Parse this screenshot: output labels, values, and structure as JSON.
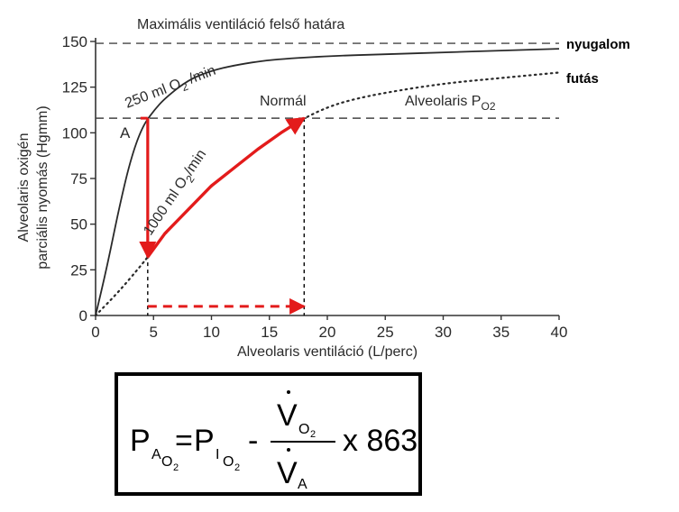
{
  "chart_data": {
    "type": "line",
    "title": "Maximális ventiláció felső határa",
    "xlabel": "Alveolaris ventiláció (L/perc)",
    "ylabel": [
      "Alveolaris oxigén",
      "parciális nyomás (Hgmm)"
    ],
    "xlim": [
      0,
      40
    ],
    "ylim": [
      0,
      150
    ],
    "xticks": [
      0,
      5,
      10,
      15,
      20,
      25,
      30,
      35,
      40
    ],
    "yticks": [
      0,
      25,
      50,
      75,
      100,
      125,
      150
    ],
    "reference_lines": [
      {
        "name": "upper_limit",
        "y": 149
      },
      {
        "name": "alveolar_po2",
        "y": 108
      }
    ],
    "series": [
      {
        "name": "nyugalom",
        "style": "solid",
        "label": "250 ml O",
        "label_sub": "2",
        "label_unit": " /min",
        "x": [
          0,
          1,
          2,
          3,
          4,
          5,
          6,
          8,
          10,
          12,
          15,
          20,
          25,
          30,
          35,
          40
        ],
        "y": [
          0,
          27,
          58,
          85,
          103,
          112,
          119,
          129,
          134,
          137,
          140,
          142,
          143,
          144,
          145,
          146
        ]
      },
      {
        "name": "futás",
        "style": "dotted",
        "label": "1000 ml O",
        "label_sub": "2",
        "label_unit": "/min",
        "x": [
          0,
          2,
          4,
          4.5,
          6,
          8,
          10,
          12,
          14,
          16,
          18,
          20,
          22,
          25,
          30,
          35,
          40
        ],
        "y": [
          0,
          13,
          28,
          32,
          45,
          58,
          71,
          81,
          91,
          100,
          108,
          114,
          118,
          122,
          127,
          130,
          133
        ]
      }
    ],
    "annotations": {
      "point_a": "A",
      "normal": "Normál",
      "alveolar_po2_label": "Alveolaris P",
      "alveolar_po2_sub": "O2"
    },
    "highlights": {
      "color": "#e31b1b",
      "down_arrow": {
        "x": 4.5,
        "y_from": 108,
        "y_to": 32
      },
      "curve_arrow": {
        "x": [
          4.5,
          6,
          8,
          10,
          12,
          14,
          16,
          18
        ],
        "y": [
          32,
          45,
          58,
          71,
          81,
          91,
          100,
          108
        ]
      },
      "dashed_arrow": {
        "y": 5,
        "x_from": 4.5,
        "x_to": 18
      },
      "guide_lines_x": [
        4.5,
        18
      ]
    },
    "legend": [
      "nyugalom",
      "futás"
    ]
  },
  "formula": {
    "p": "P",
    "a": "A",
    "o": "O",
    "two": "2",
    "equals": "=",
    "i": "I",
    "minus": "-",
    "v": "V",
    "times": "x 863"
  }
}
